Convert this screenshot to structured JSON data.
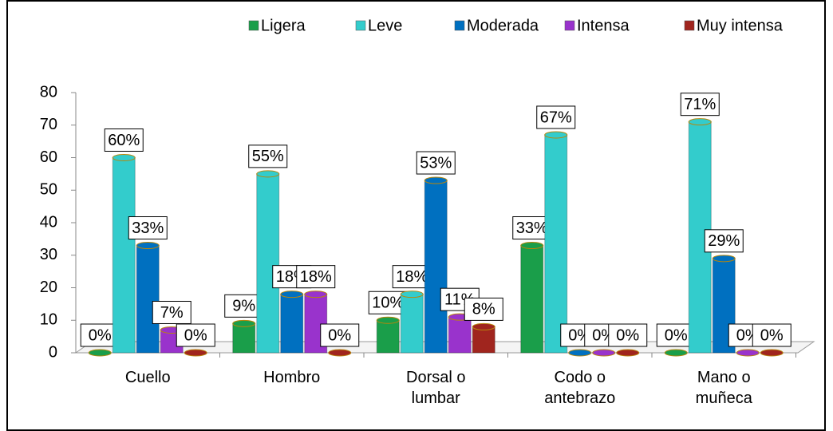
{
  "chart_data": {
    "type": "bar",
    "categories": [
      "Cuello",
      "Hombro",
      "Dorsal o lumbar",
      "Codo o antebrazo",
      "Mano o muñeca"
    ],
    "series": [
      {
        "name": "Ligera",
        "color": "#1a9e4a",
        "values": [
          0,
          9,
          10,
          33,
          0
        ],
        "value_labels": [
          "0%",
          "9%",
          "10%",
          "33%",
          "0%"
        ]
      },
      {
        "name": "Leve",
        "color": "#33cccc",
        "values": [
          60,
          55,
          18,
          67,
          71
        ],
        "value_labels": [
          "60%",
          "55%",
          "18%",
          "67%",
          "71%"
        ]
      },
      {
        "name": "Moderada",
        "color": "#0070c0",
        "values": [
          33,
          18,
          53,
          0,
          29
        ],
        "value_labels": [
          "33%",
          "18%",
          "53%",
          "0%",
          "29%"
        ]
      },
      {
        "name": "Intensa",
        "color": "#9933cc",
        "values": [
          7,
          18,
          11,
          0,
          0
        ],
        "value_labels": [
          "7%",
          "18%",
          "11%",
          "0%",
          "0%"
        ]
      },
      {
        "name": "Muy intensa",
        "color": "#a0251e",
        "values": [
          0,
          0,
          8,
          0,
          0
        ],
        "value_labels": [
          "0%",
          "0%",
          "8%",
          "0%",
          "0%"
        ]
      }
    ],
    "ylim": [
      0,
      80
    ],
    "yticks": [
      0,
      10,
      20,
      30,
      40,
      50,
      60,
      70,
      80
    ],
    "legend": "top"
  }
}
